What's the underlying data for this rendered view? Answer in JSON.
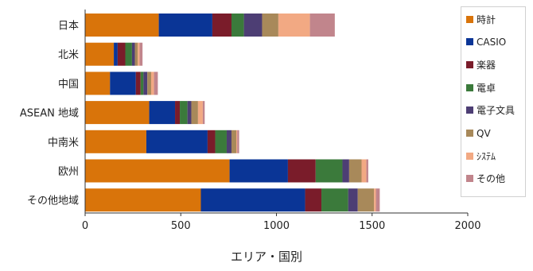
{
  "chart_data": {
    "type": "bar",
    "orientation": "horizontal",
    "stacked": true,
    "title": "",
    "xlabel": "エリア・国別",
    "ylabel": "",
    "xlim": [
      0,
      2000
    ],
    "xticks": [
      0,
      500,
      1000,
      1500,
      2000
    ],
    "grid": false,
    "legend_position": "right",
    "categories": [
      "日本",
      "北米",
      "中国",
      "ASEAN 地域",
      "中南米",
      "欧州",
      "その他地域"
    ],
    "series": [
      {
        "name": "時計",
        "color": "#d9740a",
        "values": [
          385,
          150,
          130,
          335,
          320,
          755,
          605
        ]
      },
      {
        "name": "CASIO",
        "color": "#0a3596",
        "values": [
          280,
          20,
          135,
          135,
          320,
          305,
          545
        ]
      },
      {
        "name": "楽器",
        "color": "#7a1c2a",
        "values": [
          100,
          40,
          25,
          25,
          40,
          145,
          85
        ]
      },
      {
        "name": "電卓",
        "color": "#3b7a3b",
        "values": [
          65,
          35,
          15,
          40,
          60,
          140,
          140
        ]
      },
      {
        "name": "電子文具",
        "color": "#4d3e74",
        "values": [
          95,
          15,
          20,
          20,
          25,
          35,
          50
        ]
      },
      {
        "name": "QV",
        "color": "#a8895a",
        "values": [
          85,
          15,
          20,
          35,
          25,
          65,
          85
        ]
      },
      {
        "name": "ｼｽﾃﾑ",
        "color": "#f2a983",
        "values": [
          165,
          10,
          15,
          25,
          5,
          25,
          10
        ]
      },
      {
        "name": "その他",
        "color": "#c1858c",
        "values": [
          130,
          15,
          20,
          10,
          10,
          10,
          20
        ]
      }
    ]
  }
}
